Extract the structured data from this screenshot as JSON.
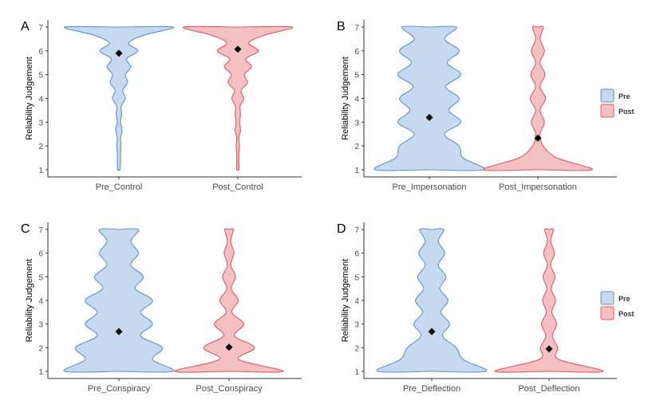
{
  "colors": {
    "pre_fill": "#c6d9ee",
    "pre_line": "#5b95cf",
    "post_fill": "#f4c1c3",
    "post_line": "#e4575f",
    "mean_marker": "#000000",
    "axis": "#333333",
    "tick_text": "#4d4d4d"
  },
  "chart_data": [
    {
      "type": "violin",
      "panel_label": "A",
      "ylabel": "Reliability Judgement",
      "ylim": [
        1,
        7
      ],
      "yticks": [
        "1",
        "2",
        "3",
        "4",
        "5",
        "6",
        "7"
      ],
      "categories": [
        "Pre_Control",
        "Post_Control"
      ],
      "groups": [
        {
          "category": "Pre_Control",
          "fill_key": "pre",
          "density": [
            0.02,
            0.03,
            0.03,
            0.04,
            0.03,
            0.06,
            0.03,
            0.05,
            0.04,
            0.12,
            0.07,
            0.16,
            0.12,
            0.22,
            0.14,
            0.35,
            0.18,
            0.47,
            1.0
          ],
          "mean": 5.9
        },
        {
          "category": "Post_Control",
          "fill_key": "post",
          "density": [
            0.02,
            0.02,
            0.02,
            0.03,
            0.02,
            0.05,
            0.03,
            0.05,
            0.04,
            0.11,
            0.06,
            0.18,
            0.12,
            0.25,
            0.15,
            0.38,
            0.2,
            0.5,
            1.0
          ],
          "mean": 6.07
        }
      ]
    },
    {
      "type": "violin",
      "panel_label": "B",
      "ylabel": "Reliability Judgement",
      "ylim": [
        1,
        7
      ],
      "yticks": [
        "1",
        "2",
        "3",
        "4",
        "5",
        "6",
        "7"
      ],
      "categories": [
        "Pre_Impersonation",
        "Post_Impersonation"
      ],
      "groups": [
        {
          "category": "Pre_Impersonation",
          "fill_key": "pre",
          "density": [
            1.0,
            0.62,
            0.55,
            0.28,
            0.58,
            0.36,
            0.55,
            0.3,
            0.58,
            0.33,
            0.55,
            0.28,
            0.5
          ],
          "mean": 3.2
        },
        {
          "category": "Post_Impersonation",
          "fill_key": "post",
          "density": [
            1.0,
            0.35,
            0.1,
            0.04,
            0.12,
            0.04,
            0.14,
            0.04,
            0.13,
            0.04,
            0.12,
            0.04,
            0.1
          ],
          "mean": 2.33
        }
      ]
    },
    {
      "type": "violin",
      "panel_label": "C",
      "ylabel": "Reliability Judgement",
      "ylim": [
        1,
        7
      ],
      "yticks": [
        "1",
        "2",
        "3",
        "4",
        "5",
        "6",
        "7"
      ],
      "categories": [
        "Pre_Conspiracy",
        "Post_Conspiracy"
      ],
      "groups": [
        {
          "category": "Pre_Conspiracy",
          "fill_key": "pre",
          "density": [
            1.0,
            0.62,
            0.8,
            0.4,
            0.62,
            0.4,
            0.62,
            0.3,
            0.45,
            0.22,
            0.36,
            0.22,
            0.36
          ],
          "mean": 2.68
        },
        {
          "category": "Post_Conspiracy",
          "fill_key": "post",
          "density": [
            1.0,
            0.18,
            0.47,
            0.1,
            0.27,
            0.05,
            0.17,
            0.04,
            0.12,
            0.03,
            0.09,
            0.03,
            0.08
          ],
          "mean": 2.02
        }
      ]
    },
    {
      "type": "violin",
      "panel_label": "D",
      "ylabel": "Reliability Judgement",
      "ylim": [
        1,
        7
      ],
      "yticks": [
        "1",
        "2",
        "3",
        "4",
        "5",
        "6",
        "7"
      ],
      "categories": [
        "Pre_Deflection",
        "Post_Deflection"
      ],
      "groups": [
        {
          "category": "Pre_Deflection",
          "fill_key": "pre",
          "density": [
            1.0,
            0.58,
            0.45,
            0.2,
            0.33,
            0.17,
            0.3,
            0.15,
            0.26,
            0.12,
            0.24,
            0.12,
            0.22
          ],
          "mean": 2.68
        },
        {
          "category": "Post_Deflection",
          "fill_key": "post",
          "density": [
            1.0,
            0.18,
            0.16,
            0.06,
            0.14,
            0.05,
            0.12,
            0.04,
            0.11,
            0.03,
            0.1,
            0.03,
            0.08
          ],
          "mean": 1.95
        }
      ]
    }
  ],
  "legends": [
    {
      "items": [
        {
          "label": "Pre",
          "fill_key": "pre"
        },
        {
          "label": "Post",
          "fill_key": "post"
        }
      ]
    },
    {
      "items": [
        {
          "label": "Pre",
          "fill_key": "pre"
        },
        {
          "label": "Post",
          "fill_key": "post"
        }
      ]
    }
  ]
}
